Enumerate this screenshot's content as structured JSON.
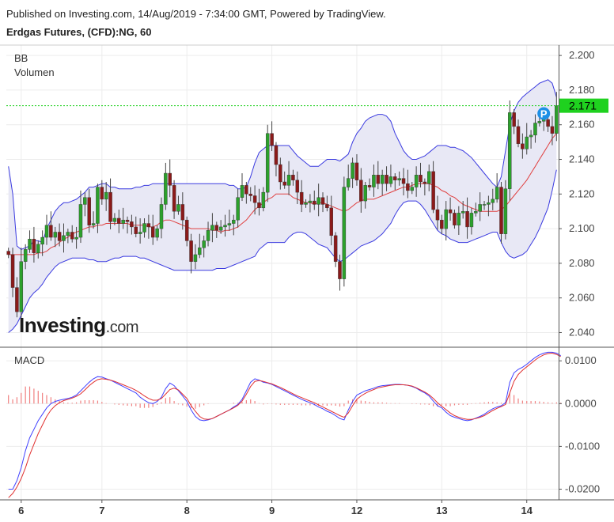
{
  "header": {
    "published": "Published on Investing.com, 14/Aug/2019 - 7:34:00 GMT, Powered by TradingView.",
    "title": "Erdgas Futures, (CFD):NG, 60"
  },
  "logo": {
    "brand": "Investing",
    "suffix": ".com"
  },
  "chart_data": [
    {
      "type": "candlestick",
      "panel": "price",
      "legend": [
        "BB",
        "Volumen"
      ],
      "ylim": [
        2.032,
        2.206
      ],
      "yticks": [
        "2.200",
        "2.180",
        "2.160",
        "2.140",
        "2.120",
        "2.100",
        "2.080",
        "2.060",
        "2.040"
      ],
      "last_price": "2.171",
      "last_price_value": 2.171,
      "marker": "P",
      "x_ticks": [
        "6",
        "7",
        "8",
        "9",
        "12",
        "13",
        "14"
      ],
      "x_tick_bars": [
        3,
        22,
        42,
        62,
        82,
        102,
        122
      ],
      "bar_count": 130,
      "close": [
        2.085,
        2.066,
        2.052,
        2.081,
        2.088,
        2.094,
        2.086,
        2.091,
        2.095,
        2.102,
        2.095,
        2.098,
        2.093,
        2.096,
        2.098,
        2.094,
        2.095,
        2.114,
        2.118,
        2.102,
        2.103,
        2.124,
        2.117,
        2.121,
        2.104,
        2.106,
        2.103,
        2.105,
        2.104,
        2.101,
        2.097,
        2.098,
        2.103,
        2.101,
        2.095,
        2.1,
        2.114,
        2.132,
        2.125,
        2.11,
        2.114,
        2.105,
        2.093,
        2.081,
        2.085,
        2.089,
        2.093,
        2.099,
        2.102,
        2.099,
        2.101,
        2.102,
        2.103,
        2.105,
        2.118,
        2.125,
        2.12,
        2.119,
        2.115,
        2.112,
        2.121,
        2.155,
        2.148,
        2.137,
        2.127,
        2.125,
        2.131,
        2.128,
        2.121,
        2.114,
        2.115,
        2.116,
        2.114,
        2.118,
        2.114,
        2.112,
        2.096,
        2.081,
        2.071,
        2.124,
        2.129,
        2.138,
        2.128,
        2.116,
        2.125,
        2.124,
        2.131,
        2.126,
        2.131,
        2.126,
        2.13,
        2.128,
        2.129,
        2.126,
        2.122,
        2.124,
        2.131,
        2.127,
        2.126,
        2.133,
        2.111,
        2.105,
        2.1,
        2.111,
        2.109,
        2.102,
        2.109,
        2.11,
        2.101,
        2.109,
        2.11,
        2.114,
        2.114,
        2.115,
        2.117,
        2.124,
        2.097,
        2.123,
        2.167,
        2.159,
        2.149,
        2.146,
        2.153,
        2.154,
        2.161,
        2.162,
        2.163,
        2.159,
        2.155,
        2.171
      ],
      "bb_upper": [
        2.136,
        2.12,
        2.09,
        2.088,
        2.089,
        2.09,
        2.093,
        2.093,
        2.092,
        2.1,
        2.105,
        2.11,
        2.113,
        2.115,
        2.115,
        2.116,
        2.117,
        2.119,
        2.121,
        2.124,
        2.124,
        2.125,
        2.126,
        2.126,
        2.124,
        2.124,
        2.123,
        2.123,
        2.123,
        2.123,
        2.124,
        2.124,
        2.125,
        2.125,
        2.126,
        2.126,
        2.126,
        2.126,
        2.126,
        2.126,
        2.126,
        2.126,
        2.126,
        2.126,
        2.126,
        2.126,
        2.126,
        2.126,
        2.126,
        2.126,
        2.126,
        2.126,
        2.125,
        2.125,
        2.123,
        2.123,
        2.124,
        2.13,
        2.138,
        2.144,
        2.146,
        2.148,
        2.148,
        2.148,
        2.148,
        2.148,
        2.148,
        2.145,
        2.142,
        2.14,
        2.138,
        2.136,
        2.136,
        2.136,
        2.138,
        2.14,
        2.14,
        2.14,
        2.139,
        2.141,
        2.143,
        2.15,
        2.155,
        2.158,
        2.162,
        2.164,
        2.165,
        2.166,
        2.166,
        2.165,
        2.162,
        2.155,
        2.15,
        2.145,
        2.142,
        2.14,
        2.14,
        2.141,
        2.142,
        2.144,
        2.146,
        2.148,
        2.148,
        2.148,
        2.147,
        2.147,
        2.146,
        2.145,
        2.143,
        2.141,
        2.138,
        2.135,
        2.132,
        2.129,
        2.126,
        2.124,
        2.13,
        2.145,
        2.16,
        2.168,
        2.173,
        2.176,
        2.178,
        2.18,
        2.182,
        2.184,
        2.185,
        2.186,
        2.184,
        2.176
      ],
      "bb_middle": [
        2.085,
        2.085,
        2.085,
        2.085,
        2.085,
        2.085,
        2.085,
        2.086,
        2.086,
        2.087,
        2.089,
        2.09,
        2.092,
        2.094,
        2.095,
        2.097,
        2.098,
        2.099,
        2.1,
        2.101,
        2.101,
        2.102,
        2.102,
        2.103,
        2.103,
        2.103,
        2.103,
        2.103,
        2.103,
        2.102,
        2.102,
        2.102,
        2.102,
        2.101,
        2.101,
        2.102,
        2.104,
        2.105,
        2.105,
        2.104,
        2.103,
        2.102,
        2.101,
        2.1,
        2.1,
        2.1,
        2.1,
        2.1,
        2.099,
        2.099,
        2.098,
        2.099,
        2.099,
        2.1,
        2.101,
        2.103,
        2.105,
        2.108,
        2.111,
        2.113,
        2.115,
        2.117,
        2.118,
        2.12,
        2.12,
        2.12,
        2.12,
        2.118,
        2.117,
        2.116,
        2.115,
        2.115,
        2.114,
        2.115,
        2.115,
        2.114,
        2.113,
        2.112,
        2.111,
        2.11,
        2.111,
        2.113,
        2.115,
        2.116,
        2.117,
        2.117,
        2.117,
        2.118,
        2.119,
        2.12,
        2.121,
        2.122,
        2.123,
        2.124,
        2.124,
        2.125,
        2.126,
        2.126,
        2.126,
        2.126,
        2.125,
        2.124,
        2.122,
        2.121,
        2.119,
        2.118,
        2.116,
        2.114,
        2.113,
        2.112,
        2.111,
        2.11,
        2.11,
        2.11,
        2.11,
        2.11,
        2.111,
        2.113,
        2.116,
        2.119,
        2.122,
        2.125,
        2.128,
        2.132,
        2.136,
        2.14,
        2.144,
        2.148,
        2.152,
        2.155
      ],
      "bb_lower": [
        2.04,
        2.042,
        2.045,
        2.05,
        2.055,
        2.06,
        2.063,
        2.065,
        2.068,
        2.072,
        2.075,
        2.078,
        2.08,
        2.081,
        2.082,
        2.083,
        2.083,
        2.083,
        2.083,
        2.082,
        2.082,
        2.081,
        2.081,
        2.081,
        2.082,
        2.083,
        2.083,
        2.084,
        2.084,
        2.084,
        2.084,
        2.083,
        2.083,
        2.082,
        2.081,
        2.08,
        2.079,
        2.078,
        2.077,
        2.076,
        2.076,
        2.076,
        2.076,
        2.076,
        2.076,
        2.076,
        2.076,
        2.076,
        2.076,
        2.077,
        2.077,
        2.077,
        2.078,
        2.079,
        2.08,
        2.081,
        2.082,
        2.083,
        2.084,
        2.088,
        2.09,
        2.092,
        2.092,
        2.092,
        2.092,
        2.092,
        2.095,
        2.097,
        2.098,
        2.098,
        2.097,
        2.095,
        2.093,
        2.091,
        2.09,
        2.089,
        2.086,
        2.083,
        2.081,
        2.082,
        2.084,
        2.086,
        2.088,
        2.09,
        2.091,
        2.092,
        2.093,
        2.095,
        2.097,
        2.1,
        2.103,
        2.108,
        2.112,
        2.115,
        2.116,
        2.116,
        2.116,
        2.114,
        2.111,
        2.107,
        2.103,
        2.099,
        2.097,
        2.096,
        2.094,
        2.093,
        2.092,
        2.092,
        2.092,
        2.093,
        2.094,
        2.095,
        2.096,
        2.097,
        2.098,
        2.098,
        2.092,
        2.087,
        2.084,
        2.083,
        2.084,
        2.085,
        2.087,
        2.091,
        2.095,
        2.1,
        2.106,
        2.112,
        2.122,
        2.134
      ]
    },
    {
      "type": "macd",
      "panel": "indicator",
      "legend": [
        "MACD"
      ],
      "ylim": [
        -0.0225,
        0.013
      ],
      "yticks": [
        "0.0100",
        "0.0000",
        "-0.0100",
        "-0.0200"
      ],
      "x_ticks": [
        "6",
        "7",
        "8",
        "9",
        "12",
        "13",
        "14"
      ],
      "macd": [
        -0.02,
        -0.02,
        -0.018,
        -0.015,
        -0.011,
        -0.008,
        -0.006,
        -0.004,
        -0.0025,
        -0.001,
        0.0,
        0.0005,
        0.0008,
        0.001,
        0.0012,
        0.0015,
        0.002,
        0.003,
        0.004,
        0.005,
        0.0058,
        0.0063,
        0.0062,
        0.0058,
        0.0055,
        0.005,
        0.0045,
        0.004,
        0.0035,
        0.003,
        0.0025,
        0.0015,
        0.0008,
        0.0002,
        0.0,
        0.0005,
        0.0015,
        0.0035,
        0.0048,
        0.0042,
        0.003,
        0.0018,
        0.0005,
        -0.0015,
        -0.003,
        -0.0038,
        -0.004,
        -0.0038,
        -0.0035,
        -0.003,
        -0.0025,
        -0.002,
        -0.0015,
        -0.0008,
        -0.0002,
        0.001,
        0.003,
        0.005,
        0.0058,
        0.0055,
        0.005,
        0.0048,
        0.0045,
        0.004,
        0.0035,
        0.003,
        0.0025,
        0.002,
        0.0015,
        0.001,
        0.0006,
        0.0002,
        -0.0002,
        -0.0008,
        -0.0012,
        -0.0018,
        -0.0022,
        -0.0028,
        -0.0035,
        -0.0038,
        -0.0015,
        0.0005,
        0.002,
        0.0025,
        0.003,
        0.0033,
        0.0036,
        0.004,
        0.0042,
        0.0043,
        0.0044,
        0.0045,
        0.0045,
        0.0044,
        0.0043,
        0.004,
        0.0036,
        0.003,
        0.0025,
        0.0018,
        0.0006,
        -0.0005,
        -0.001,
        -0.002,
        -0.0028,
        -0.0032,
        -0.0035,
        -0.0038,
        -0.004,
        -0.0038,
        -0.0034,
        -0.003,
        -0.0025,
        -0.0018,
        -0.0012,
        -0.0008,
        -0.0005,
        0.0002,
        0.005,
        0.0072,
        0.008,
        0.0085,
        0.0092,
        0.01,
        0.0108,
        0.0114,
        0.0118,
        0.012,
        0.012,
        0.0118,
        0.0112
      ],
      "signal": [
        -0.022,
        -0.021,
        -0.0195,
        -0.0175,
        -0.015,
        -0.012,
        -0.0095,
        -0.007,
        -0.005,
        -0.003,
        -0.0015,
        -0.0005,
        0.0002,
        0.0007,
        0.001,
        0.0013,
        0.0017,
        0.0023,
        0.0032,
        0.0042,
        0.005,
        0.0056,
        0.0058,
        0.0057,
        0.0055,
        0.0052,
        0.0048,
        0.0044,
        0.004,
        0.0036,
        0.0031,
        0.0025,
        0.0018,
        0.0012,
        0.0008,
        0.0008,
        0.0012,
        0.0022,
        0.0033,
        0.0036,
        0.0032,
        0.0022,
        0.0012,
        -0.0005,
        -0.0018,
        -0.003,
        -0.0036,
        -0.0037,
        -0.0035,
        -0.003,
        -0.0025,
        -0.002,
        -0.0015,
        -0.001,
        -0.0004,
        0.0006,
        0.0022,
        0.004,
        0.0052,
        0.0054,
        0.0052,
        0.0049,
        0.0046,
        0.0042,
        0.0038,
        0.0033,
        0.0028,
        0.0023,
        0.0018,
        0.0014,
        0.001,
        0.0006,
        0.0002,
        -0.0003,
        -0.0008,
        -0.0013,
        -0.0018,
        -0.0023,
        -0.0028,
        -0.0032,
        -0.0022,
        -0.0005,
        0.001,
        0.0018,
        0.0024,
        0.0029,
        0.0033,
        0.0037,
        0.0039,
        0.0041,
        0.0043,
        0.0044,
        0.0044,
        0.0044,
        0.0043,
        0.0041,
        0.0037,
        0.0032,
        0.0027,
        0.0021,
        0.0012,
        0.0002,
        -0.0006,
        -0.0014,
        -0.0022,
        -0.0028,
        -0.0032,
        -0.0035,
        -0.0037,
        -0.0037,
        -0.0035,
        -0.0032,
        -0.0028,
        -0.0022,
        -0.0016,
        -0.0011,
        -0.0007,
        -0.0002,
        0.0025,
        0.0052,
        0.0068,
        0.0078,
        0.0086,
        0.0094,
        0.0102,
        0.0109,
        0.0114,
        0.0117,
        0.0118,
        0.0115,
        0.011
      ]
    }
  ],
  "colors": {
    "up": "#2ca02c",
    "down": "#8b1a1a",
    "band_fill": "#e8e8f5",
    "band_line": "#3a3ae0",
    "basis": "#e04040",
    "macd_line": "#4040ff",
    "signal_line": "#e03030",
    "histogram": "#f08080",
    "last_price_bg": "#1fd11f",
    "marker_bg": "#1e90e6"
  }
}
